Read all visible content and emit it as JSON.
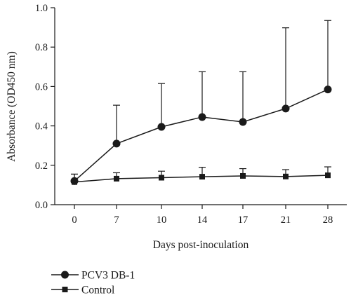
{
  "chart_data": {
    "type": "line",
    "xlabel": "Days post-inoculation",
    "ylabel": "Absorbance (OD450 nm)",
    "categories": [
      "0",
      "7",
      "10",
      "14",
      "17",
      "21",
      "28"
    ],
    "yticks": [
      "0.0",
      "0.2",
      "0.4",
      "0.6",
      "0.8",
      "1.0"
    ],
    "ylim": [
      0,
      1.0
    ],
    "grid": false,
    "legend_position": "bottom-left",
    "error_bars": "upper",
    "series": [
      {
        "name": "PCV3 DB-1",
        "marker": "circle",
        "values": [
          0.12,
          0.31,
          0.395,
          0.445,
          0.42,
          0.488,
          0.585
        ],
        "error": [
          0.035,
          0.195,
          0.22,
          0.23,
          0.255,
          0.41,
          0.35
        ]
      },
      {
        "name": "Control",
        "marker": "square",
        "values": [
          0.115,
          0.132,
          0.137,
          0.142,
          0.146,
          0.143,
          0.149
        ],
        "error": [
          0.04,
          0.03,
          0.033,
          0.048,
          0.037,
          0.035,
          0.043
        ]
      }
    ],
    "colors": {
      "line": "#1a1a1a",
      "background": "#ffffff"
    }
  }
}
